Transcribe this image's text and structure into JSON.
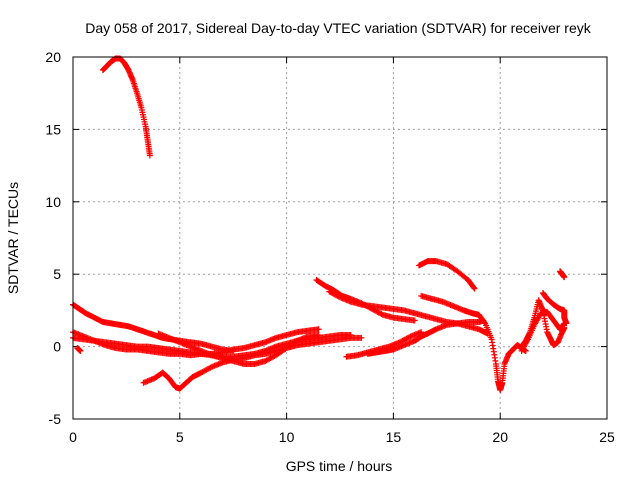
{
  "chart_data": {
    "type": "scatter",
    "title": "Day 058 of 2017, Sidereal Day-to-day VTEC variation (SDTVAR) for receiver reyk",
    "xlabel": "GPS time / hours",
    "ylabel": "SDTVAR / TECUs",
    "xlim": [
      0,
      25
    ],
    "ylim": [
      -5,
      20
    ],
    "xticks": [
      0,
      5,
      10,
      15,
      20,
      25
    ],
    "yticks": [
      -5,
      0,
      5,
      10,
      15,
      20
    ],
    "grid": true,
    "marker": "+",
    "series": [
      {
        "name": "SDTVAR",
        "color": "#ff0000",
        "tracks": [
          [
            [
              1.4,
              19.1
            ],
            [
              1.6,
              19.4
            ],
            [
              1.8,
              19.7
            ],
            [
              2.0,
              19.9
            ],
            [
              2.2,
              19.9
            ],
            [
              2.4,
              19.6
            ],
            [
              2.6,
              19.1
            ],
            [
              2.8,
              18.4
            ],
            [
              3.0,
              17.5
            ],
            [
              3.2,
              16.5
            ],
            [
              3.4,
              15.2
            ],
            [
              3.5,
              14.2
            ],
            [
              3.6,
              13.2
            ]
          ],
          [
            [
              0.0,
              2.9
            ],
            [
              0.3,
              2.6
            ],
            [
              0.6,
              2.3
            ],
            [
              1.0,
              2.0
            ],
            [
              1.4,
              1.7
            ],
            [
              1.8,
              1.6
            ],
            [
              2.2,
              1.5
            ],
            [
              2.6,
              1.4
            ],
            [
              3.0,
              1.2
            ],
            [
              3.4,
              1.0
            ],
            [
              3.8,
              0.8
            ],
            [
              4.2,
              0.6
            ],
            [
              4.6,
              0.5
            ],
            [
              5.0,
              0.4
            ],
            [
              5.5,
              0.3
            ],
            [
              6.0,
              0.2
            ],
            [
              6.5,
              0.0
            ],
            [
              7.0,
              -0.2
            ],
            [
              7.5,
              -0.3
            ]
          ],
          [
            [
              0.0,
              1.0
            ],
            [
              0.5,
              0.7
            ],
            [
              1.0,
              0.4
            ],
            [
              1.5,
              0.1
            ],
            [
              2.0,
              -0.1
            ],
            [
              2.5,
              -0.2
            ],
            [
              3.0,
              -0.2
            ],
            [
              3.5,
              -0.3
            ],
            [
              4.0,
              -0.4
            ],
            [
              4.5,
              -0.5
            ],
            [
              5.0,
              -0.5
            ],
            [
              5.5,
              -0.6
            ],
            [
              6.0,
              -0.5
            ],
            [
              6.5,
              -0.5
            ],
            [
              7.0,
              -0.4
            ],
            [
              7.5,
              -0.2
            ],
            [
              8.0,
              -0.1
            ],
            [
              8.5,
              0.1
            ],
            [
              9.0,
              0.3
            ],
            [
              9.5,
              0.6
            ],
            [
              10.0,
              0.8
            ],
            [
              10.5,
              1.0
            ],
            [
              11.0,
              1.1
            ],
            [
              11.5,
              1.2
            ]
          ],
          [
            [
              0.0,
              0.6
            ],
            [
              0.5,
              0.5
            ],
            [
              1.0,
              0.4
            ],
            [
              1.5,
              0.3
            ],
            [
              2.0,
              0.2
            ],
            [
              2.5,
              0.1
            ],
            [
              3.0,
              0.0
            ],
            [
              3.5,
              0.0
            ],
            [
              4.0,
              -0.1
            ],
            [
              4.5,
              -0.2
            ],
            [
              5.0,
              -0.3
            ],
            [
              5.5,
              -0.4
            ],
            [
              6.0,
              -0.5
            ],
            [
              6.5,
              -0.6
            ],
            [
              7.0,
              -0.7
            ],
            [
              7.5,
              -0.7
            ],
            [
              8.0,
              -0.6
            ],
            [
              8.5,
              -0.5
            ],
            [
              9.0,
              -0.3
            ],
            [
              9.5,
              0.0
            ],
            [
              10.0,
              0.2
            ],
            [
              10.5,
              0.4
            ],
            [
              11.0,
              0.5
            ],
            [
              11.5,
              0.6
            ],
            [
              12.0,
              0.7
            ],
            [
              12.5,
              0.8
            ],
            [
              13.0,
              0.8
            ]
          ],
          [
            [
              0.2,
              -0.1
            ],
            [
              0.35,
              -0.3
            ]
          ],
          [
            [
              3.3,
              -2.5
            ],
            [
              3.8,
              -2.2
            ],
            [
              4.2,
              -1.8
            ],
            [
              4.5,
              -2.2
            ],
            [
              4.8,
              -2.8
            ],
            [
              5.0,
              -2.9
            ],
            [
              5.3,
              -2.5
            ],
            [
              5.6,
              -2.1
            ],
            [
              6.0,
              -1.8
            ],
            [
              6.5,
              -1.4
            ],
            [
              7.0,
              -1.1
            ],
            [
              7.5,
              -0.9
            ],
            [
              8.0,
              -0.8
            ],
            [
              8.5,
              -0.6
            ],
            [
              9.0,
              -0.5
            ],
            [
              9.5,
              -0.3
            ],
            [
              10.0,
              -0.1
            ],
            [
              10.5,
              0.1
            ],
            [
              11.0,
              0.2
            ],
            [
              11.5,
              0.3
            ],
            [
              12.0,
              0.4
            ],
            [
              12.5,
              0.5
            ],
            [
              13.0,
              0.6
            ],
            [
              13.5,
              0.6
            ]
          ],
          [
            [
              4.0,
              0.9
            ],
            [
              4.5,
              0.6
            ],
            [
              5.0,
              0.3
            ],
            [
              5.5,
              0.0
            ],
            [
              6.0,
              -0.3
            ],
            [
              6.5,
              -0.6
            ],
            [
              7.0,
              -0.8
            ],
            [
              7.5,
              -1.0
            ],
            [
              8.0,
              -1.2
            ],
            [
              8.5,
              -1.2
            ],
            [
              9.0,
              -1.0
            ],
            [
              9.5,
              -0.6
            ],
            [
              10.0,
              -0.1
            ],
            [
              10.5,
              0.4
            ],
            [
              11.0,
              0.7
            ],
            [
              11.5,
              0.8
            ]
          ],
          [
            [
              11.4,
              4.6
            ],
            [
              11.8,
              4.2
            ],
            [
              12.2,
              3.9
            ],
            [
              12.6,
              3.5
            ],
            [
              13.0,
              3.3
            ],
            [
              13.5,
              3.0
            ],
            [
              14.0,
              2.6
            ],
            [
              14.5,
              2.2
            ],
            [
              15.0,
              2.0
            ],
            [
              15.5,
              1.9
            ],
            [
              16.0,
              1.8
            ]
          ],
          [
            [
              12.0,
              3.8
            ],
            [
              12.5,
              3.4
            ],
            [
              13.0,
              3.1
            ],
            [
              13.5,
              2.9
            ],
            [
              14.0,
              2.8
            ],
            [
              14.5,
              2.7
            ],
            [
              15.0,
              2.6
            ],
            [
              15.5,
              2.5
            ],
            [
              16.0,
              2.3
            ],
            [
              16.5,
              2.1
            ],
            [
              17.0,
              1.9
            ],
            [
              17.5,
              1.7
            ],
            [
              18.0,
              1.6
            ],
            [
              18.5,
              1.4
            ],
            [
              19.0,
              1.2
            ],
            [
              19.4,
              0.9
            ]
          ],
          [
            [
              16.2,
              5.6
            ],
            [
              16.6,
              5.9
            ],
            [
              17.0,
              5.9
            ],
            [
              17.5,
              5.7
            ],
            [
              18.0,
              5.2
            ],
            [
              18.5,
              4.6
            ],
            [
              18.8,
              4.0
            ]
          ],
          [
            [
              16.3,
              3.5
            ],
            [
              16.8,
              3.3
            ],
            [
              17.3,
              3.1
            ],
            [
              17.8,
              2.8
            ],
            [
              18.3,
              2.5
            ],
            [
              18.7,
              2.3
            ],
            [
              19.0,
              2.2
            ],
            [
              19.3,
              1.6
            ],
            [
              19.6,
              0.5
            ],
            [
              19.8,
              -1.2
            ],
            [
              19.9,
              -2.4
            ],
            [
              20.0,
              -3.0
            ],
            [
              20.1,
              -2.5
            ],
            [
              20.2,
              -1.2
            ],
            [
              20.4,
              -0.5
            ],
            [
              20.6,
              -0.2
            ],
            [
              20.8,
              0.1
            ],
            [
              21.0,
              -0.1
            ],
            [
              21.2,
              -0.3
            ]
          ],
          [
            [
              13.8,
              -0.5
            ],
            [
              14.2,
              -0.4
            ],
            [
              14.6,
              -0.3
            ],
            [
              15.0,
              -0.2
            ],
            [
              15.5,
              0.1
            ],
            [
              16.0,
              0.4
            ],
            [
              16.3,
              0.7
            ],
            [
              16.6,
              0.9
            ],
            [
              17.0,
              1.2
            ],
            [
              17.5,
              1.5
            ],
            [
              18.0,
              1.6
            ],
            [
              18.5,
              1.7
            ],
            [
              19.0,
              1.7
            ],
            [
              19.2,
              1.8
            ]
          ],
          [
            [
              12.8,
              -0.7
            ],
            [
              13.3,
              -0.6
            ],
            [
              13.8,
              -0.4
            ],
            [
              14.3,
              -0.2
            ],
            [
              14.8,
              0.0
            ],
            [
              15.3,
              0.3
            ],
            [
              15.8,
              0.7
            ],
            [
              16.3,
              1.0
            ]
          ],
          [
            [
              21.0,
              0.0
            ],
            [
              21.2,
              0.4
            ],
            [
              21.4,
              1.0
            ],
            [
              21.6,
              2.0
            ],
            [
              21.8,
              3.2
            ],
            [
              22.0,
              2.5
            ],
            [
              22.2,
              1.0
            ],
            [
              22.4,
              0.4
            ],
            [
              22.5,
              0.1
            ],
            [
              22.7,
              0.3
            ],
            [
              22.9,
              1.0
            ],
            [
              23.0,
              1.3
            ]
          ],
          [
            [
              21.0,
              -0.3
            ],
            [
              21.3,
              0.5
            ],
            [
              21.6,
              1.5
            ],
            [
              21.9,
              2.3
            ],
            [
              22.2,
              2.4
            ],
            [
              22.5,
              1.8
            ],
            [
              22.8,
              1.2
            ],
            [
              23.0,
              1.6
            ]
          ],
          [
            [
              22.0,
              3.7
            ],
            [
              22.2,
              3.3
            ],
            [
              22.5,
              2.9
            ],
            [
              22.8,
              2.6
            ],
            [
              23.0,
              2.5
            ],
            [
              23.0,
              2.0
            ],
            [
              23.1,
              1.6
            ]
          ],
          [
            [
              22.8,
              5.2
            ],
            [
              22.9,
              5.0
            ],
            [
              23.0,
              4.8
            ]
          ]
        ]
      }
    ]
  }
}
